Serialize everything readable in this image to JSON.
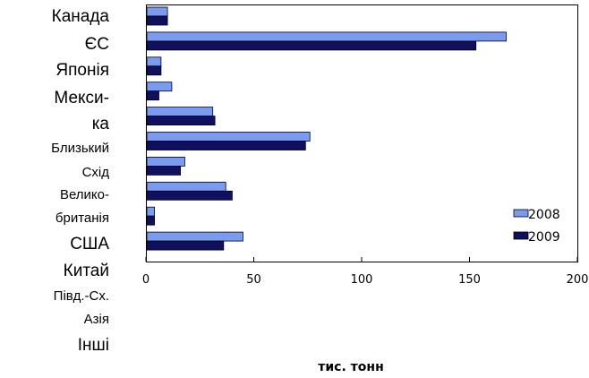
{
  "chart_data": {
    "type": "bar",
    "orientation": "horizontal",
    "categories": [
      [
        "Канада"
      ],
      [
        "ЄС"
      ],
      [
        "Японія"
      ],
      [
        "Мекси-",
        "ка"
      ],
      [
        "Близький",
        "Схід"
      ],
      [
        "Велико-",
        "британія"
      ],
      [
        "США"
      ],
      [
        "Китай"
      ],
      [
        "Півд.-Сх.",
        "Азія"
      ],
      [
        "Інші"
      ]
    ],
    "series": [
      {
        "name": "2008",
        "color": "#7b9bef",
        "values": [
          10,
          167,
          7,
          12,
          31,
          76,
          18,
          37,
          4,
          45
        ]
      },
      {
        "name": "2009",
        "color": "#10105e",
        "values": [
          10,
          153,
          7,
          6,
          32,
          74,
          16,
          40,
          4,
          36
        ]
      }
    ],
    "xlabel": "тис. тонн",
    "xlim": [
      0,
      200
    ],
    "xticks": [
      "0",
      "50",
      "100",
      "150",
      "200"
    ],
    "legend_position": "bottom-right",
    "grid": false
  }
}
